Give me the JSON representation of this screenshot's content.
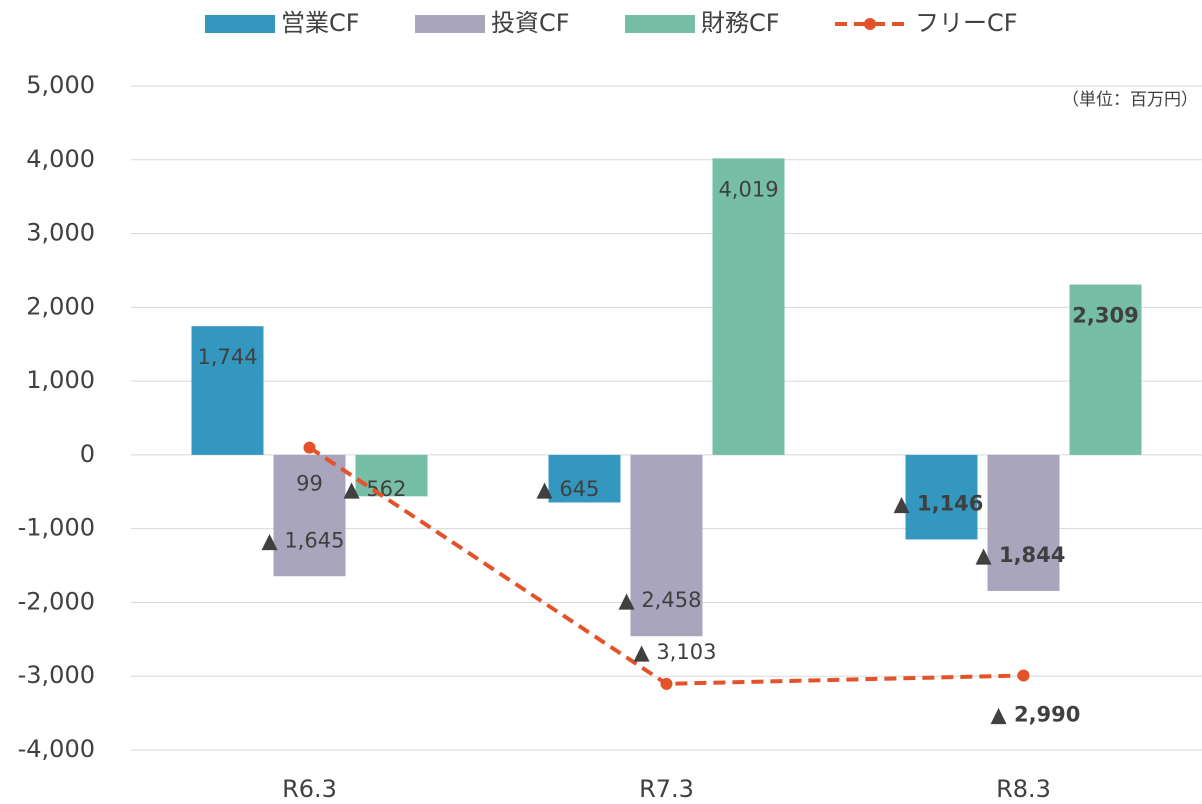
{
  "chart_data": {
    "type": "bar",
    "unit_note": "（単位：百万円）",
    "categories": [
      "R6.3",
      "R7.3",
      "R8.3"
    ],
    "series": [
      {
        "name": "営業CF",
        "color": "#3497bf",
        "values": [
          1744,
          -645,
          -1146
        ],
        "value_labels": [
          "1,744",
          "▲ 645",
          "▲ 1,146"
        ]
      },
      {
        "name": "投資CF",
        "color": "#a9a5bd",
        "values": [
          -1645,
          -2458,
          -1844
        ],
        "value_labels": [
          "▲ 1,645",
          "▲ 2,458",
          "▲ 1,844"
        ]
      },
      {
        "name": "財務CF",
        "color": "#76bea5",
        "values": [
          -562,
          4019,
          2309
        ],
        "value_labels": [
          "▲ 562",
          "4,019",
          "2,309"
        ]
      },
      {
        "name": "フリーCF",
        "color": "#e4522a",
        "type": "line",
        "values": [
          99,
          -3103,
          -2990
        ],
        "value_labels": [
          "99",
          "▲ 3,103",
          "▲ 2,990"
        ]
      }
    ],
    "ylim": [
      -4000,
      5000
    ],
    "yticks": [
      {
        "value": 5000,
        "label": "5,000"
      },
      {
        "value": 4000,
        "label": "4,000"
      },
      {
        "value": 3000,
        "label": "3,000"
      },
      {
        "value": 2000,
        "label": "2,000"
      },
      {
        "value": 1000,
        "label": "1,000"
      },
      0,
      {
        "value": -1000,
        "label": "-1,000"
      },
      {
        "value": -2000,
        "label": "-2,000"
      },
      {
        "value": -3000,
        "label": "-3,000"
      },
      {
        "value": -4000,
        "label": "-4,000"
      }
    ],
    "grid": true
  }
}
